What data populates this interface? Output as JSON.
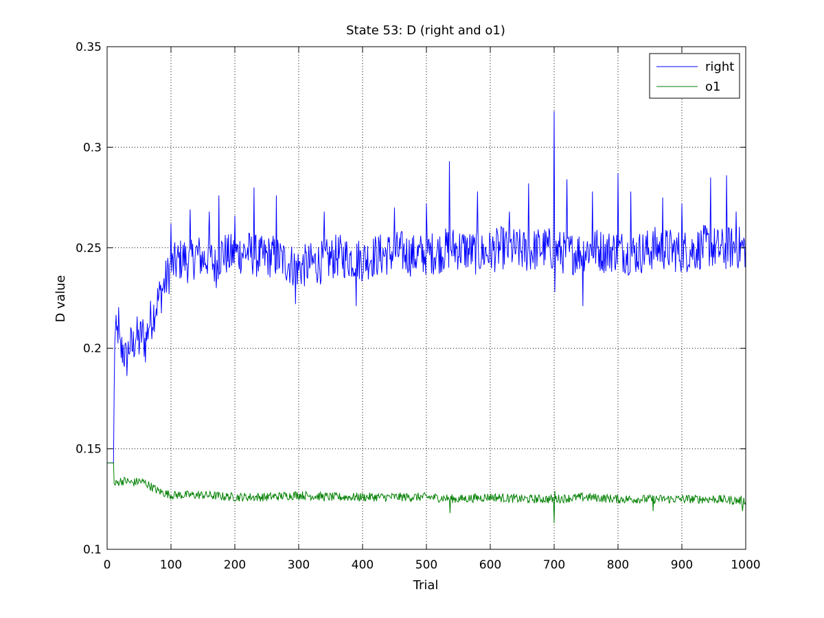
{
  "chart_data": {
    "type": "line",
    "title": "State 53: D (right and o1)",
    "xlabel": "Trial",
    "ylabel": "D value",
    "xlim": [
      0,
      1000
    ],
    "ylim": [
      0.1,
      0.35
    ],
    "x_ticks": [
      0,
      100,
      200,
      300,
      400,
      500,
      600,
      700,
      800,
      900,
      1000
    ],
    "y_ticks": [
      0.1,
      0.15,
      0.2,
      0.25,
      0.3,
      0.35
    ],
    "x_tick_labels": [
      "0",
      "100",
      "200",
      "300",
      "400",
      "500",
      "600",
      "700",
      "800",
      "900",
      "1000"
    ],
    "y_tick_labels": [
      "0.1",
      "0.15",
      "0.2",
      "0.25",
      "0.3",
      "0.35"
    ],
    "grid": true,
    "legend_position": "top-right",
    "series": [
      {
        "name": "right",
        "color": "#0000ff",
        "points": [
          [
            0,
            0.143
          ],
          [
            10,
            0.143
          ],
          [
            11,
            0.175
          ],
          [
            12,
            0.207
          ],
          [
            15,
            0.205
          ],
          [
            18,
            0.212
          ],
          [
            20,
            0.198
          ],
          [
            25,
            0.2
          ],
          [
            30,
            0.193
          ],
          [
            35,
            0.202
          ],
          [
            40,
            0.2
          ],
          [
            45,
            0.207
          ],
          [
            50,
            0.203
          ],
          [
            55,
            0.208
          ],
          [
            60,
            0.202
          ],
          [
            65,
            0.212
          ],
          [
            70,
            0.215
          ],
          [
            75,
            0.22
          ],
          [
            80,
            0.224
          ],
          [
            85,
            0.228
          ],
          [
            90,
            0.232
          ],
          [
            95,
            0.236
          ],
          [
            100,
            0.24
          ],
          [
            110,
            0.243
          ],
          [
            120,
            0.245
          ],
          [
            130,
            0.242
          ],
          [
            140,
            0.247
          ],
          [
            150,
            0.244
          ],
          [
            160,
            0.246
          ],
          [
            170,
            0.24
          ],
          [
            180,
            0.248
          ],
          [
            190,
            0.246
          ],
          [
            200,
            0.247
          ],
          [
            220,
            0.248
          ],
          [
            240,
            0.245
          ],
          [
            260,
            0.246
          ],
          [
            280,
            0.243
          ],
          [
            300,
            0.24
          ],
          [
            320,
            0.242
          ],
          [
            340,
            0.243
          ],
          [
            360,
            0.246
          ],
          [
            380,
            0.245
          ],
          [
            400,
            0.244
          ],
          [
            420,
            0.246
          ],
          [
            440,
            0.247
          ],
          [
            460,
            0.248
          ],
          [
            480,
            0.246
          ],
          [
            500,
            0.247
          ],
          [
            520,
            0.248
          ],
          [
            540,
            0.25
          ],
          [
            560,
            0.249
          ],
          [
            580,
            0.247
          ],
          [
            600,
            0.248
          ],
          [
            620,
            0.25
          ],
          [
            640,
            0.249
          ],
          [
            660,
            0.248
          ],
          [
            680,
            0.25
          ],
          [
            700,
            0.249
          ],
          [
            720,
            0.247
          ],
          [
            740,
            0.248
          ],
          [
            760,
            0.25
          ],
          [
            780,
            0.248
          ],
          [
            800,
            0.249
          ],
          [
            820,
            0.247
          ],
          [
            840,
            0.248
          ],
          [
            860,
            0.25
          ],
          [
            880,
            0.249
          ],
          [
            900,
            0.248
          ],
          [
            920,
            0.249
          ],
          [
            940,
            0.251
          ],
          [
            960,
            0.249
          ],
          [
            980,
            0.25
          ],
          [
            1000,
            0.25
          ]
        ],
        "spikes": [
          [
            100,
            0.262
          ],
          [
            130,
            0.269
          ],
          [
            160,
            0.268
          ],
          [
            175,
            0.276
          ],
          [
            200,
            0.266
          ],
          [
            230,
            0.28
          ],
          [
            265,
            0.276
          ],
          [
            295,
            0.222
          ],
          [
            340,
            0.268
          ],
          [
            390,
            0.221
          ],
          [
            450,
            0.27
          ],
          [
            500,
            0.272
          ],
          [
            536,
            0.293
          ],
          [
            580,
            0.278
          ],
          [
            630,
            0.268
          ],
          [
            660,
            0.282
          ],
          [
            700,
            0.318
          ],
          [
            701,
            0.228
          ],
          [
            720,
            0.284
          ],
          [
            745,
            0.221
          ],
          [
            760,
            0.278
          ],
          [
            800,
            0.287
          ],
          [
            820,
            0.278
          ],
          [
            870,
            0.275
          ],
          [
            900,
            0.272
          ],
          [
            945,
            0.285
          ],
          [
            970,
            0.286
          ],
          [
            985,
            0.268
          ]
        ]
      },
      {
        "name": "o1",
        "color": "#007f00",
        "points": [
          [
            0,
            0.143
          ],
          [
            10,
            0.143
          ],
          [
            11,
            0.132
          ],
          [
            20,
            0.134
          ],
          [
            30,
            0.134
          ],
          [
            40,
            0.133
          ],
          [
            50,
            0.134
          ],
          [
            60,
            0.133
          ],
          [
            70,
            0.131
          ],
          [
            80,
            0.129
          ],
          [
            90,
            0.128
          ],
          [
            100,
            0.127
          ],
          [
            150,
            0.127
          ],
          [
            200,
            0.126
          ],
          [
            250,
            0.126
          ],
          [
            300,
            0.127
          ],
          [
            350,
            0.126
          ],
          [
            400,
            0.126
          ],
          [
            450,
            0.126
          ],
          [
            500,
            0.126
          ],
          [
            550,
            0.125
          ],
          [
            600,
            0.126
          ],
          [
            650,
            0.125
          ],
          [
            700,
            0.125
          ],
          [
            750,
            0.126
          ],
          [
            800,
            0.125
          ],
          [
            850,
            0.125
          ],
          [
            900,
            0.125
          ],
          [
            950,
            0.125
          ],
          [
            1000,
            0.124
          ]
        ],
        "spikes": [
          [
            537,
            0.118
          ],
          [
            700,
            0.113
          ],
          [
            701,
            0.129
          ],
          [
            855,
            0.119
          ],
          [
            995,
            0.119
          ]
        ]
      }
    ]
  }
}
